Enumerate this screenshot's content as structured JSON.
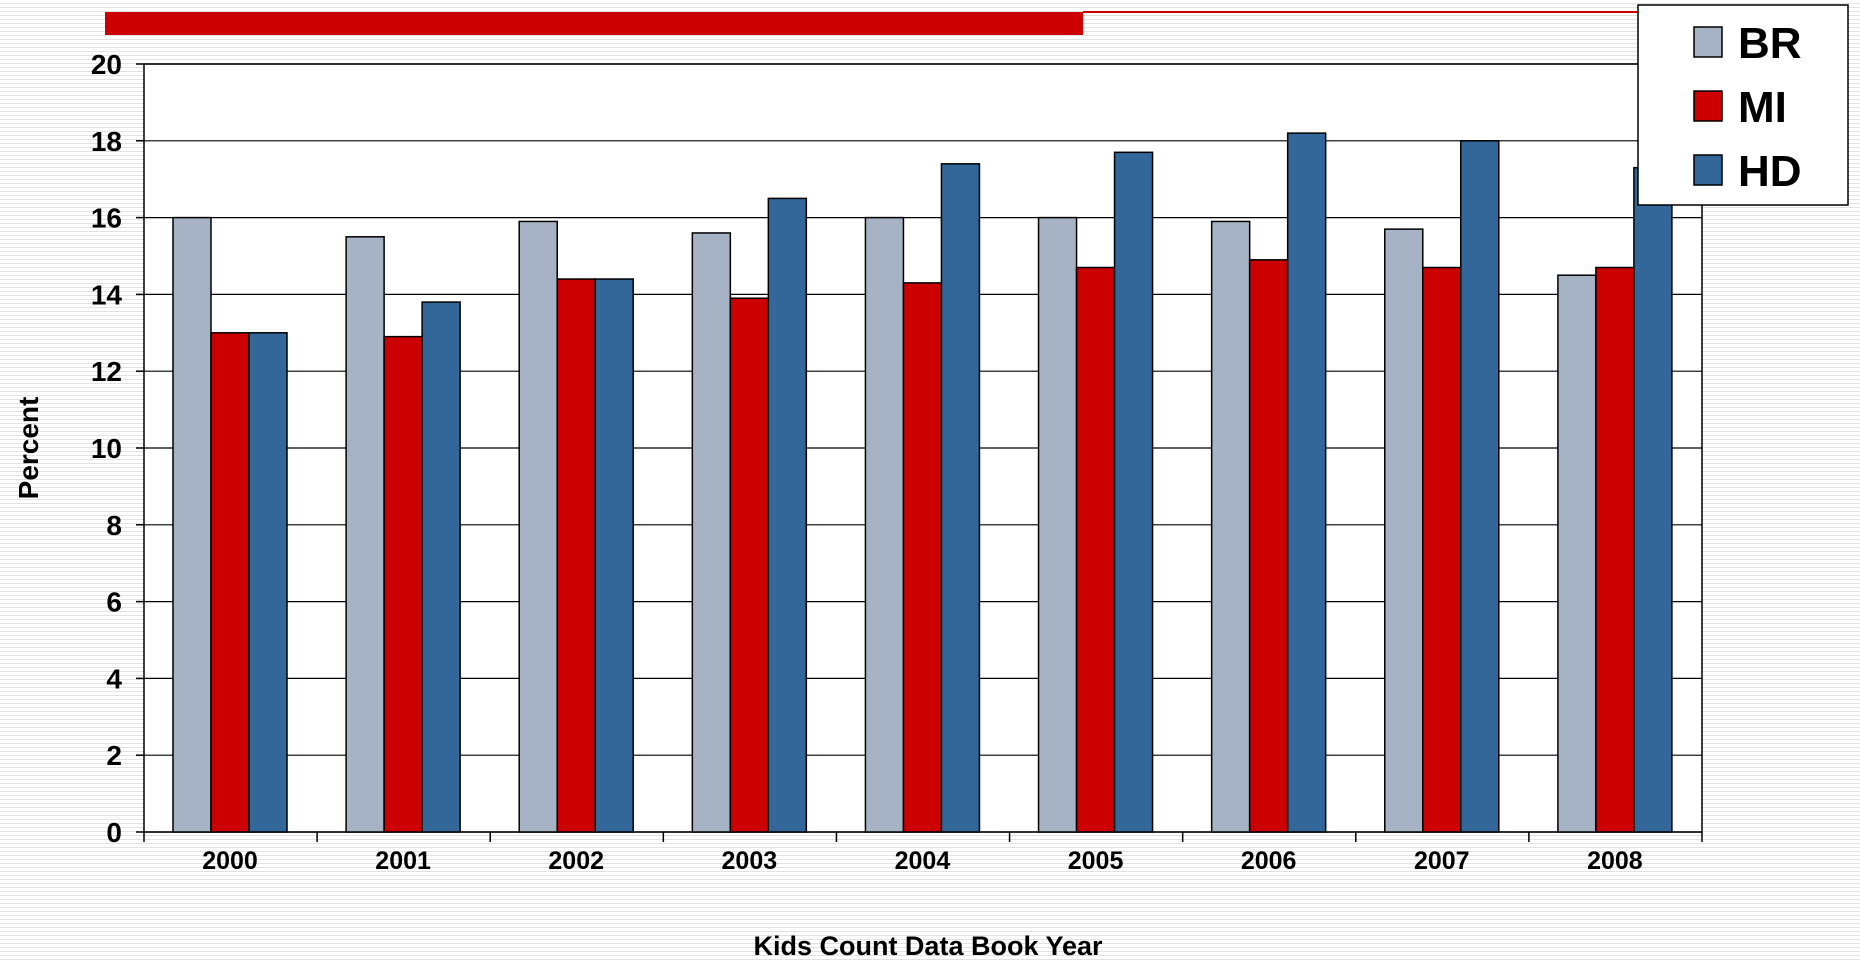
{
  "chart_data": {
    "type": "bar",
    "title": "",
    "xlabel": "Kids Count Data Book Year",
    "ylabel": "Percent",
    "ylim": [
      0,
      20
    ],
    "yticks": [
      0,
      2,
      4,
      6,
      8,
      10,
      12,
      14,
      16,
      18,
      20
    ],
    "grid": true,
    "legend_position": "top-right",
    "categories": [
      "2000",
      "2001",
      "2002",
      "2003",
      "2004",
      "2005",
      "2006",
      "2007",
      "2008"
    ],
    "series": [
      {
        "name": "BR",
        "color": "#a6b3c4",
        "values": [
          16.0,
          15.5,
          15.9,
          15.6,
          16.0,
          16.0,
          15.9,
          15.7,
          14.5
        ]
      },
      {
        "name": "MI",
        "color": "#cc0000",
        "values": [
          13.0,
          12.9,
          14.4,
          13.9,
          14.3,
          14.7,
          14.9,
          14.7,
          14.7
        ]
      },
      {
        "name": "HD",
        "color": "#336699",
        "values": [
          13.0,
          13.8,
          14.4,
          16.5,
          17.4,
          17.7,
          18.2,
          18.0,
          17.3
        ]
      }
    ]
  },
  "theme": {
    "accent_bar_color": "#cc0000"
  }
}
